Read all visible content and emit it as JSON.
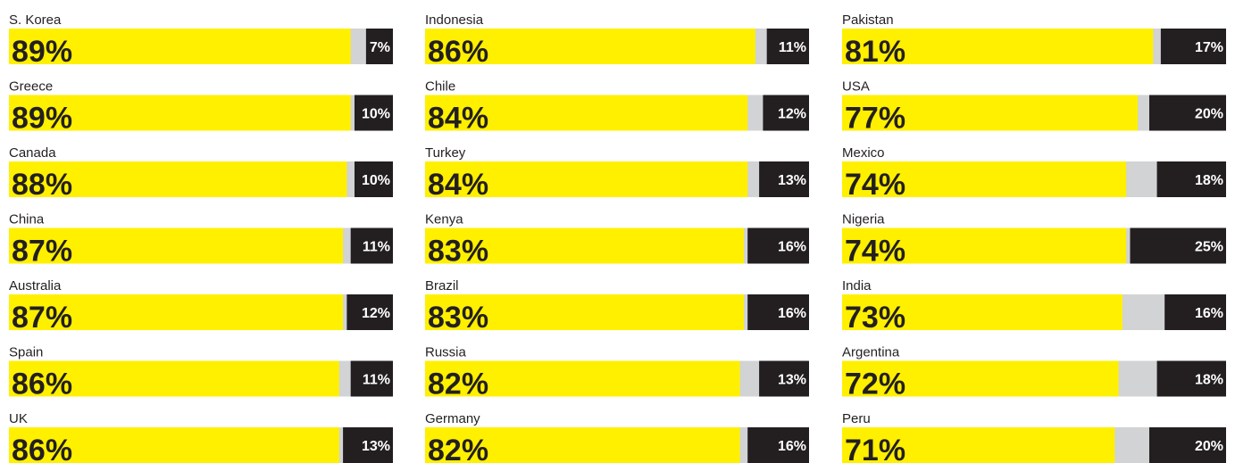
{
  "chart_data": {
    "type": "bar",
    "categories": [
      "S. Korea",
      "Greece",
      "Canada",
      "China",
      "Australia",
      "Spain",
      "UK",
      "Indonesia",
      "Chile",
      "Turkey",
      "Kenya",
      "Brazil",
      "Russia",
      "Germany",
      "Pakistan",
      "USA",
      "Mexico",
      "Nigeria",
      "India",
      "Argentina",
      "Peru"
    ],
    "xlim": [
      0,
      100
    ],
    "track_color": "#d1d3d4",
    "series": [
      {
        "color": "#fff000",
        "values": [
          89,
          89,
          88,
          87,
          87,
          86,
          86,
          86,
          84,
          84,
          83,
          83,
          82,
          82,
          81,
          77,
          74,
          74,
          73,
          72,
          71
        ],
        "value_labels": [
          "89%",
          "89%",
          "88%",
          "87%",
          "87%",
          "86%",
          "86%",
          "86%",
          "84%",
          "84%",
          "83%",
          "83%",
          "82%",
          "82%",
          "81%",
          "77%",
          "74%",
          "74%",
          "73%",
          "72%",
          "71%"
        ]
      },
      {
        "color": "#231f20",
        "values": [
          7,
          10,
          10,
          11,
          12,
          11,
          13,
          11,
          12,
          13,
          16,
          16,
          13,
          16,
          17,
          20,
          18,
          25,
          16,
          18,
          20
        ],
        "value_labels": [
          "7%",
          "10%",
          "10%",
          "11%",
          "12%",
          "11%",
          "13%",
          "11%",
          "12%",
          "13%",
          "16%",
          "16%",
          "13%",
          "16%",
          "17%",
          "20%",
          "18%",
          "25%",
          "16%",
          "18%",
          "20%"
        ]
      }
    ]
  }
}
